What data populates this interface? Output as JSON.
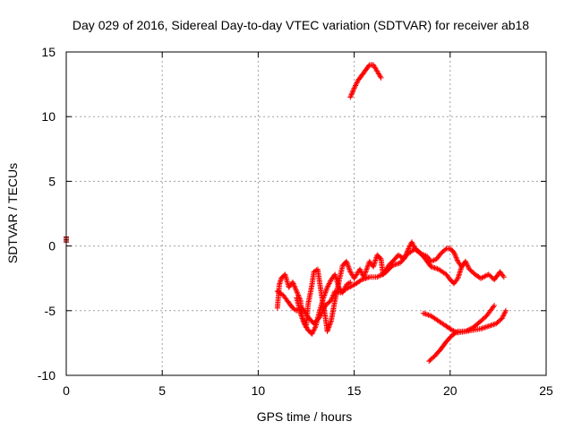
{
  "chart_data": {
    "type": "scatter",
    "title": "Day 029 of 2016, Sidereal Day-to-day VTEC variation (SDTVAR) for receiver ab18",
    "xlabel": "GPS time / hours",
    "ylabel": "SDTVAR / TECUs",
    "xlim": [
      0,
      25
    ],
    "ylim": [
      -10,
      15
    ],
    "xticks": [
      0,
      5,
      10,
      15,
      20,
      25
    ],
    "yticks": [
      -10,
      -5,
      0,
      5,
      10,
      15
    ],
    "xtick_labels": [
      "0",
      "5",
      "10",
      "15",
      "20",
      "25"
    ],
    "ytick_labels": [
      "-10",
      "-5",
      "0",
      "5",
      "10",
      "15"
    ],
    "grid": true,
    "marker": "+",
    "colors": {
      "points": "#ff0000",
      "early": "#a00000",
      "grid": "#a0a0a0",
      "axis": "#000000"
    },
    "series": [
      {
        "points": [
          [
            0.0,
            0.7
          ],
          [
            0.0,
            0.5
          ],
          [
            0.0,
            0.3
          ]
        ]
      },
      {
        "points": [
          [
            14.8,
            11.5
          ],
          [
            15.0,
            12.2
          ],
          [
            15.2,
            12.8
          ],
          [
            15.5,
            13.4
          ],
          [
            15.8,
            14.0
          ],
          [
            16.0,
            14.0
          ],
          [
            16.2,
            13.5
          ],
          [
            16.4,
            13.0
          ]
        ]
      },
      {
        "points": [
          [
            11.0,
            -4.8
          ],
          [
            11.1,
            -3.0
          ],
          [
            11.2,
            -2.5
          ],
          [
            11.4,
            -2.2
          ],
          [
            11.6,
            -3.2
          ],
          [
            11.8,
            -2.8
          ],
          [
            12.0,
            -3.5
          ],
          [
            12.2,
            -4.2
          ],
          [
            12.3,
            -5.5
          ],
          [
            12.5,
            -6.3
          ],
          [
            12.6,
            -4.5
          ],
          [
            12.8,
            -3.0
          ],
          [
            12.9,
            -2.0
          ],
          [
            13.1,
            -1.8
          ],
          [
            13.3,
            -3.8
          ],
          [
            13.5,
            -5.5
          ],
          [
            13.6,
            -6.6
          ],
          [
            13.8,
            -5.8
          ],
          [
            14.0,
            -4.2
          ],
          [
            14.2,
            -2.8
          ],
          [
            14.4,
            -1.5
          ],
          [
            14.6,
            -1.2
          ],
          [
            14.8,
            -2.0
          ],
          [
            15.0,
            -2.5
          ],
          [
            15.3,
            -1.8
          ],
          [
            15.5,
            -2.4
          ],
          [
            15.8,
            -1.2
          ],
          [
            16.0,
            -1.6
          ],
          [
            16.2,
            -0.7
          ],
          [
            16.4,
            -1.0
          ],
          [
            16.5,
            -2.2
          ],
          [
            16.8,
            -1.5
          ],
          [
            17.0,
            -1.2
          ],
          [
            17.3,
            -0.7
          ],
          [
            17.6,
            -1.0
          ],
          [
            17.8,
            -0.3
          ],
          [
            18.0,
            0.3
          ],
          [
            18.2,
            -0.3
          ],
          [
            18.5,
            -0.6
          ],
          [
            18.8,
            -0.8
          ],
          [
            19.0,
            -1.2
          ],
          [
            19.3,
            -1.0
          ],
          [
            19.5,
            -0.6
          ],
          [
            19.8,
            -0.2
          ],
          [
            20.0,
            -0.2
          ],
          [
            20.2,
            -0.5
          ],
          [
            20.4,
            -1.2
          ],
          [
            20.6,
            -1.6
          ],
          [
            20.8,
            -1.2
          ],
          [
            21.0,
            -1.8
          ],
          [
            21.3,
            -2.2
          ],
          [
            21.6,
            -2.5
          ],
          [
            22.0,
            -2.2
          ],
          [
            22.3,
            -2.6
          ],
          [
            22.6,
            -2.0
          ],
          [
            22.8,
            -2.4
          ]
        ]
      },
      {
        "points": [
          [
            11.0,
            -3.5
          ],
          [
            11.3,
            -3.8
          ],
          [
            11.5,
            -4.2
          ],
          [
            11.8,
            -4.8
          ],
          [
            12.0,
            -5.0
          ],
          [
            12.3,
            -4.8
          ],
          [
            12.6,
            -5.5
          ],
          [
            12.9,
            -6.0
          ],
          [
            13.2,
            -5.5
          ],
          [
            13.5,
            -4.6
          ],
          [
            13.8,
            -4.2
          ],
          [
            14.0,
            -3.5
          ],
          [
            14.3,
            -3.6
          ],
          [
            14.6,
            -3.3
          ],
          [
            15.0,
            -3.0
          ],
          [
            15.4,
            -2.6
          ],
          [
            15.8,
            -2.4
          ],
          [
            16.2,
            -2.4
          ],
          [
            16.6,
            -2.1
          ],
          [
            17.0,
            -1.5
          ],
          [
            17.4,
            -1.3
          ],
          [
            17.8,
            -0.6
          ],
          [
            18.2,
            -0.2
          ],
          [
            18.6,
            -0.8
          ],
          [
            19.0,
            -1.6
          ],
          [
            19.4,
            -1.8
          ],
          [
            19.8,
            -2.2
          ],
          [
            20.0,
            -2.6
          ],
          [
            20.2,
            -2.9
          ],
          [
            20.4,
            -2.5
          ],
          [
            20.6,
            -1.6
          ],
          [
            20.8,
            -1.2
          ]
        ]
      },
      {
        "points": [
          [
            12.0,
            -4.0
          ],
          [
            12.2,
            -5.2
          ],
          [
            12.4,
            -6.0
          ],
          [
            12.6,
            -6.5
          ],
          [
            12.8,
            -6.8
          ],
          [
            13.0,
            -6.2
          ],
          [
            13.2,
            -5.0
          ],
          [
            13.4,
            -4.0
          ],
          [
            13.6,
            -3.2
          ],
          [
            13.8,
            -2.6
          ],
          [
            14.0,
            -2.2
          ],
          [
            14.2,
            -3.2
          ],
          [
            14.4,
            -3.6
          ],
          [
            14.6,
            -3.0
          ],
          [
            14.8,
            -2.8
          ]
        ]
      },
      {
        "points": [
          [
            18.6,
            -5.2
          ],
          [
            19.0,
            -5.4
          ],
          [
            19.4,
            -5.8
          ],
          [
            19.8,
            -6.2
          ],
          [
            20.1,
            -6.5
          ],
          [
            20.4,
            -6.7
          ],
          [
            20.8,
            -6.6
          ],
          [
            21.2,
            -6.3
          ],
          [
            21.6,
            -5.8
          ],
          [
            21.9,
            -5.4
          ],
          [
            22.1,
            -5.0
          ],
          [
            22.3,
            -4.6
          ]
        ]
      },
      {
        "points": [
          [
            18.9,
            -8.9
          ],
          [
            19.2,
            -8.5
          ],
          [
            19.5,
            -8.0
          ],
          [
            19.8,
            -7.4
          ],
          [
            20.1,
            -6.9
          ],
          [
            20.4,
            -6.6
          ],
          [
            20.8,
            -6.6
          ],
          [
            21.2,
            -6.5
          ],
          [
            21.6,
            -6.4
          ],
          [
            22.0,
            -6.2
          ],
          [
            22.4,
            -6.0
          ],
          [
            22.7,
            -5.6
          ],
          [
            22.9,
            -5.0
          ]
        ]
      }
    ]
  }
}
